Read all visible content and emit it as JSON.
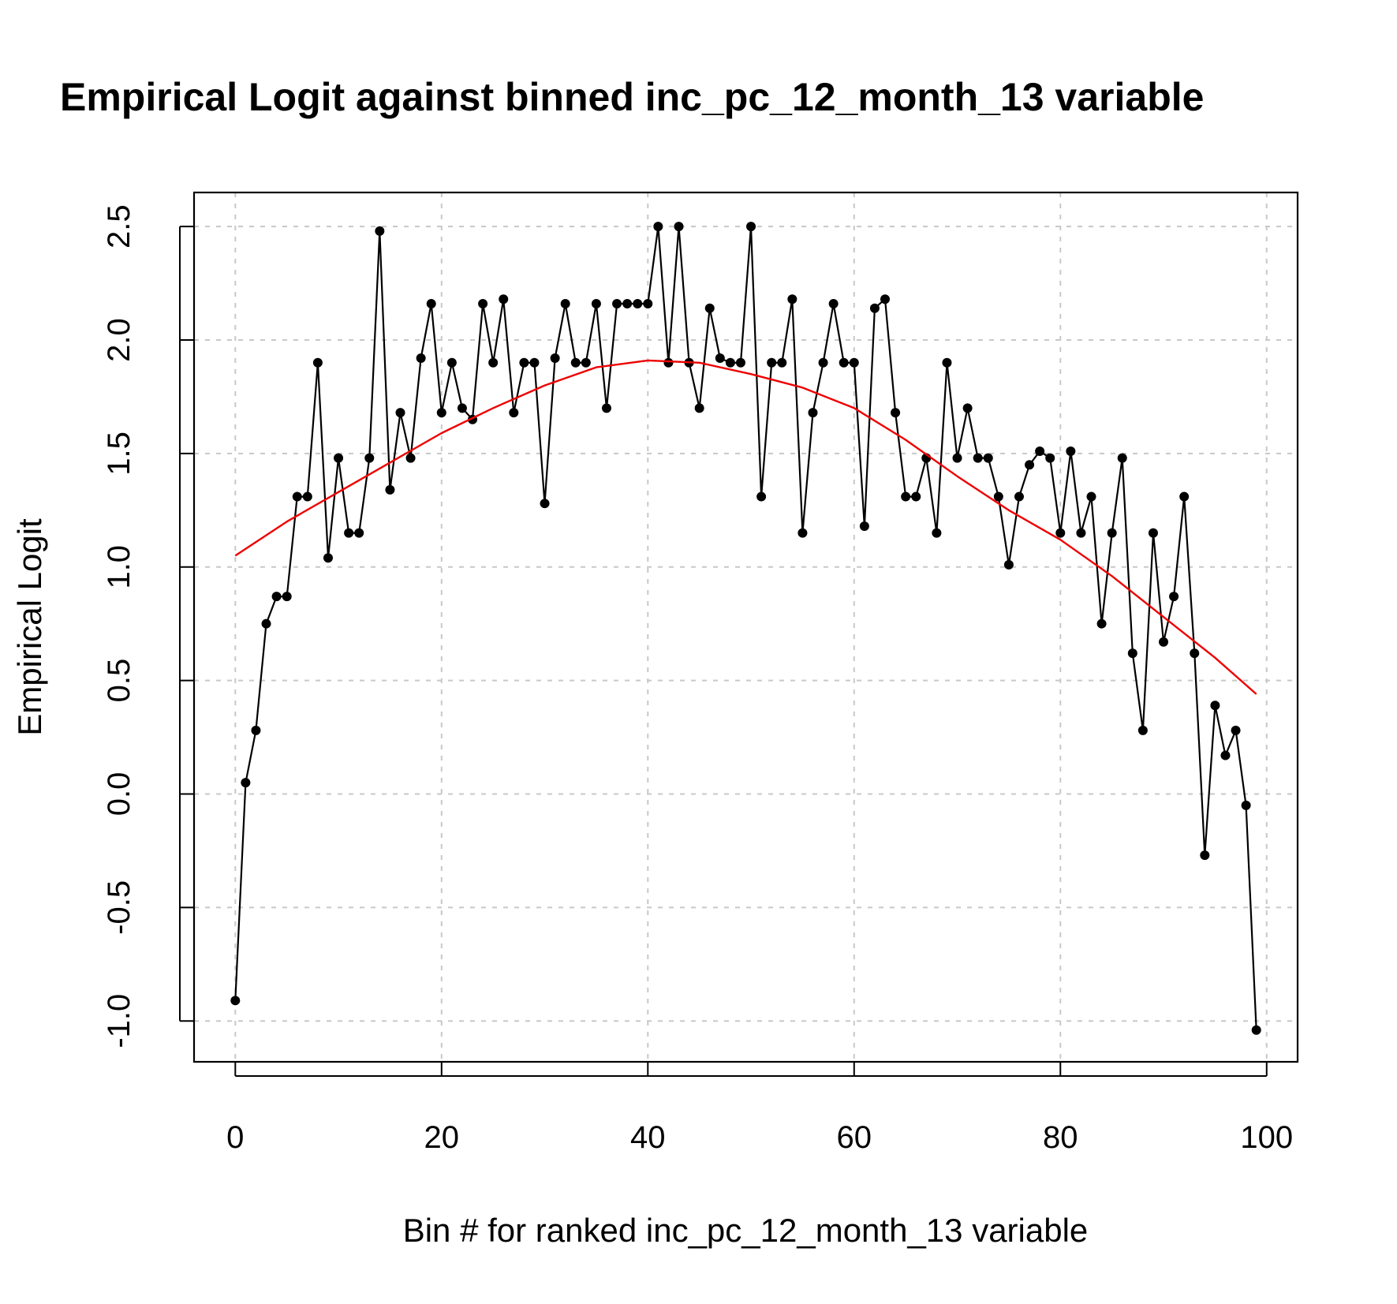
{
  "chart_data": {
    "type": "line",
    "title": "Empirical Logit against binned inc_pc_12_month_13 variable",
    "xlabel": "Bin # for ranked inc_pc_12_month_13 variable",
    "ylabel": "Empirical Logit",
    "xlim": [
      -4,
      103
    ],
    "ylim": [
      -1.18,
      2.65
    ],
    "x_ticks": [
      "0",
      "20",
      "40",
      "60",
      "80",
      "100"
    ],
    "y_ticks": [
      "-1.0",
      "-0.5",
      "0.0",
      "0.5",
      "1.0",
      "1.5",
      "2.0",
      "2.5"
    ],
    "grid": true,
    "series": [
      {
        "color": "#000000",
        "markers": true,
        "x": [
          0,
          1,
          2,
          3,
          4,
          5,
          6,
          7,
          8,
          9,
          10,
          11,
          12,
          13,
          14,
          15,
          16,
          17,
          18,
          19,
          20,
          21,
          22,
          23,
          24,
          25,
          26,
          27,
          28,
          29,
          30,
          31,
          32,
          33,
          34,
          35,
          36,
          37,
          38,
          39,
          40,
          41,
          42,
          43,
          44,
          45,
          46,
          47,
          48,
          49,
          50,
          51,
          52,
          53,
          54,
          55,
          56,
          57,
          58,
          59,
          60,
          61,
          62,
          63,
          64,
          65,
          66,
          67,
          68,
          69,
          70,
          71,
          72,
          73,
          74,
          75,
          76,
          77,
          78,
          79,
          80,
          81,
          82,
          83,
          84,
          85,
          86,
          87,
          88,
          89,
          90,
          91,
          92,
          93,
          94,
          95,
          96,
          97,
          98,
          99
        ],
        "y": [
          -0.91,
          0.05,
          0.28,
          0.75,
          0.87,
          0.87,
          1.31,
          1.31,
          1.9,
          1.04,
          1.48,
          1.15,
          1.15,
          1.48,
          2.48,
          1.34,
          1.68,
          1.48,
          1.92,
          2.16,
          1.68,
          1.9,
          1.7,
          1.65,
          2.16,
          1.9,
          2.18,
          1.68,
          1.9,
          1.9,
          1.28,
          1.92,
          2.16,
          1.9,
          1.9,
          2.16,
          1.7,
          2.16,
          2.16,
          2.16,
          2.16,
          2.5,
          1.9,
          2.5,
          1.9,
          1.7,
          2.14,
          1.92,
          1.9,
          1.9,
          2.5,
          1.31,
          1.9,
          1.9,
          2.18,
          1.15,
          1.68,
          1.9,
          2.16,
          1.9,
          1.9,
          1.18,
          2.14,
          2.18,
          1.68,
          1.31,
          1.31,
          1.48,
          1.15,
          1.9,
          1.48,
          1.7,
          1.48,
          1.48,
          1.31,
          1.01,
          1.31,
          1.45,
          1.51,
          1.48,
          1.15,
          1.51,
          1.15,
          1.31,
          0.75,
          1.15,
          1.48,
          0.62,
          0.28,
          1.15,
          0.67,
          0.87,
          1.31,
          0.62,
          -0.27,
          0.39,
          0.17,
          0.28,
          -0.05,
          -1.04
        ]
      },
      {
        "color": "#ee0000",
        "markers": false,
        "x": [
          0,
          5,
          10,
          15,
          20,
          25,
          30,
          35,
          40,
          45,
          50,
          55,
          60,
          65,
          70,
          75,
          80,
          85,
          90,
          95,
          99
        ],
        "y": [
          1.05,
          1.2,
          1.33,
          1.46,
          1.59,
          1.7,
          1.8,
          1.88,
          1.91,
          1.9,
          1.85,
          1.79,
          1.7,
          1.56,
          1.4,
          1.25,
          1.12,
          0.96,
          0.78,
          0.6,
          0.44
        ]
      }
    ]
  }
}
